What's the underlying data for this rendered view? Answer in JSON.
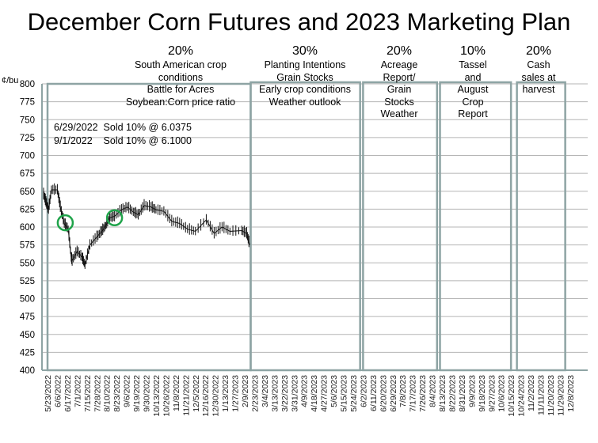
{
  "title": "December Corn Futures and 2023 Marketing Plan",
  "chart_data": {
    "type": "line",
    "title": "December Corn Futures and 2023 Marketing Plan",
    "ylabel": "¢/bu",
    "ylim": [
      400,
      800
    ],
    "yticks": [
      400,
      425,
      450,
      475,
      500,
      525,
      550,
      575,
      600,
      625,
      650,
      675,
      700,
      725,
      750,
      775,
      800
    ],
    "grid": true,
    "x_labels": [
      "5/23/2022",
      "6/6/2022",
      "6/17/2022",
      "7/1/2022",
      "7/15/2022",
      "7/28/2022",
      "8/10/2022",
      "8/23/2022",
      "9/6/2022",
      "9/19/2022",
      "9/30/2022",
      "10/13/2022",
      "10/26/2022",
      "11/8/2022",
      "11/21/2022",
      "12/5/2022",
      "12/16/2022",
      "12/30/2022",
      "1/13/2023",
      "1/27/2023",
      "2/9/2023",
      "2/23/2023",
      "3/4/2023",
      "3/13/2023",
      "3/22/2023",
      "3/31/2023",
      "4/9/2023",
      "4/18/2023",
      "4/27/2023",
      "5/6/2023",
      "5/15/2023",
      "5/24/2023",
      "6/2/2023",
      "6/11/2023",
      "6/20/2023",
      "6/29/2023",
      "7/8/2023",
      "7/17/2023",
      "7/26/2023",
      "8/4/2023",
      "8/13/2023",
      "8/22/2023",
      "8/31/2023",
      "9/9/2023",
      "9/18/2023",
      "9/27/2023",
      "10/6/2023",
      "10/15/2023",
      "10/24/2023",
      "11/2/2023",
      "11/11/2023",
      "11/20/2023",
      "11/29/2023",
      "12/8/2023"
    ],
    "series": [
      {
        "name": "December Corn Futures",
        "x_index": [
          0,
          0.24,
          0.5,
          0.8,
          1.4,
          1.7,
          2.1,
          2.5,
          2.8,
          2.9,
          3.4,
          3.9,
          4.2,
          4.7,
          5.4,
          5.9,
          6.3,
          6.7,
          7.2,
          7.9,
          8.5,
          9.1,
          9.6,
          10.2,
          10.9,
          11.4,
          12.2,
          13,
          13.8,
          14.6,
          15.4,
          16.5,
          17.3,
          18.1,
          18.9,
          20.1,
          20.6,
          20.9
        ],
        "values": [
          646,
          635,
          624,
          652,
          652,
          628,
          605,
          597,
          558,
          553,
          566,
          558,
          547,
          575,
          586,
          594,
          602,
          613,
          615,
          624,
          628,
          621,
          617,
          630,
          628,
          624,
          622,
          608,
          605,
          597,
          594,
          610,
          591,
          600,
          594,
          595,
          591,
          575
        ]
      }
    ],
    "markers": [
      {
        "x_index": 2.2,
        "value": 606
      },
      {
        "x_index": 7.2,
        "value": 613
      }
    ],
    "periods": [
      {
        "pct": "20%",
        "lines": [
          "South American crop",
          "conditions",
          "Battle for Acres",
          "Soybean:Corn price ratio"
        ],
        "start_index": 0,
        "end_index": 20.6
      },
      {
        "pct": "30%",
        "lines": [
          "Planting Intentions",
          "Grain Stocks",
          "Early crop conditions",
          "Weather outlook"
        ],
        "start_index": 20.6,
        "end_index": 31.7
      },
      {
        "pct": "20%",
        "lines": [
          "Acreage",
          "Report/",
          "Grain",
          "Stocks",
          "Weather"
        ],
        "start_index": 32,
        "end_index": 39.5
      },
      {
        "pct": "10%",
        "lines": [
          "Tassel",
          "and",
          "August",
          "Crop",
          "Report"
        ],
        "start_index": 39.8,
        "end_index": 47
      },
      {
        "pct": "20%",
        "lines": [
          "Cash",
          "sales at",
          "harvest"
        ],
        "start_index": 47.6,
        "end_index": 52.5
      }
    ],
    "annotations": [
      "6/29/2022  Sold 10% @ 6.0375",
      "9/1/2022    Sold 10% @ 6.1000"
    ]
  },
  "colors": {
    "box": "#8ea4a4",
    "grid": "#b5b5b5",
    "line": "#111111",
    "marker": "#1fa34a"
  }
}
